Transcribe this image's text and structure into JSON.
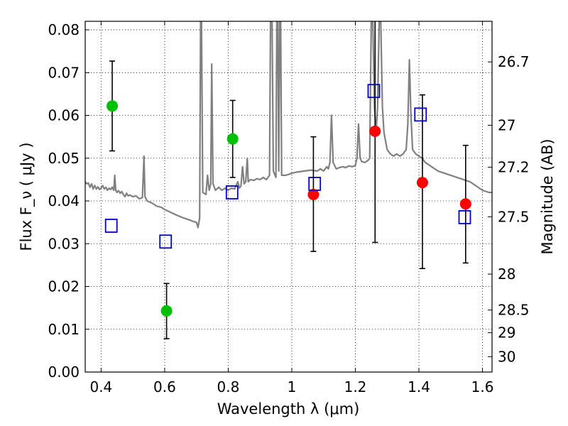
{
  "chart_data": {
    "type": "scatter",
    "xlabel": "Wavelength  λ (μm)",
    "ylabel": "Flux  F_ν ( μJy )",
    "ylabel_right": "Magnitude (AB)",
    "xlim": [
      0.35,
      1.63
    ],
    "ylim": [
      0.0,
      0.082
    ],
    "grid": true,
    "x_ticks": [
      {
        "value": 0.4,
        "label": "0.4"
      },
      {
        "value": 0.6,
        "label": "0.6"
      },
      {
        "value": 0.8,
        "label": "0.8"
      },
      {
        "value": 1.0,
        "label": "1"
      },
      {
        "value": 1.2,
        "label": "1.2"
      },
      {
        "value": 1.4,
        "label": "1.4"
      },
      {
        "value": 1.6,
        "label": "1.6"
      }
    ],
    "y_ticks": [
      {
        "value": 0.0,
        "label": "0.00"
      },
      {
        "value": 0.01,
        "label": "0.01"
      },
      {
        "value": 0.02,
        "label": "0.02"
      },
      {
        "value": 0.03,
        "label": "0.03"
      },
      {
        "value": 0.04,
        "label": "0.04"
      },
      {
        "value": 0.05,
        "label": "0.05"
      },
      {
        "value": 0.06,
        "label": "0.06"
      },
      {
        "value": 0.07,
        "label": "0.07"
      },
      {
        "value": 0.08,
        "label": "0.08"
      }
    ],
    "y_right_ticks": [
      {
        "flux": 0.0725,
        "label": "26.7"
      },
      {
        "flux": 0.0577,
        "label": "27"
      },
      {
        "flux": 0.0479,
        "label": "27.2"
      },
      {
        "flux": 0.0363,
        "label": "27.5"
      },
      {
        "flux": 0.0229,
        "label": "28"
      },
      {
        "flux": 0.0145,
        "label": "28.5"
      },
      {
        "flux": 0.0092,
        "label": "29"
      },
      {
        "flux": 0.0036,
        "label": "30"
      }
    ],
    "series": [
      {
        "kind": "line",
        "color": "#808080",
        "points": [
          [
            0.35,
            0.0445
          ],
          [
            0.355,
            0.044
          ],
          [
            0.36,
            0.0442
          ],
          [
            0.365,
            0.0432
          ],
          [
            0.37,
            0.044
          ],
          [
            0.375,
            0.0428
          ],
          [
            0.38,
            0.0436
          ],
          [
            0.385,
            0.0428
          ],
          [
            0.39,
            0.0433
          ],
          [
            0.395,
            0.0427
          ],
          [
            0.4,
            0.043
          ],
          [
            0.405,
            0.0436
          ],
          [
            0.41,
            0.0428
          ],
          [
            0.415,
            0.0432
          ],
          [
            0.42,
            0.0425
          ],
          [
            0.425,
            0.043
          ],
          [
            0.43,
            0.0427
          ],
          [
            0.435,
            0.0432
          ],
          [
            0.44,
            0.0425
          ],
          [
            0.443,
            0.046
          ],
          [
            0.446,
            0.0425
          ],
          [
            0.45,
            0.042
          ],
          [
            0.455,
            0.0424
          ],
          [
            0.46,
            0.0418
          ],
          [
            0.465,
            0.0422
          ],
          [
            0.47,
            0.0415
          ],
          [
            0.475,
            0.041
          ],
          [
            0.48,
            0.0418
          ],
          [
            0.485,
            0.0412
          ],
          [
            0.49,
            0.0414
          ],
          [
            0.5,
            0.041
          ],
          [
            0.51,
            0.0412
          ],
          [
            0.52,
            0.0405
          ],
          [
            0.53,
            0.0408
          ],
          [
            0.535,
            0.0505
          ],
          [
            0.538,
            0.041
          ],
          [
            0.545,
            0.04
          ],
          [
            0.56,
            0.0395
          ],
          [
            0.575,
            0.0388
          ],
          [
            0.59,
            0.0385
          ],
          [
            0.6,
            0.038
          ],
          [
            0.62,
            0.0373
          ],
          [
            0.64,
            0.0366
          ],
          [
            0.66,
            0.036
          ],
          [
            0.68,
            0.0355
          ],
          [
            0.69,
            0.0352
          ],
          [
            0.7,
            0.035
          ],
          [
            0.705,
            0.0338
          ],
          [
            0.71,
            0.036
          ],
          [
            0.713,
            0.082
          ],
          [
            0.716,
            0.082
          ],
          [
            0.72,
            0.042
          ],
          [
            0.73,
            0.0415
          ],
          [
            0.735,
            0.046
          ],
          [
            0.74,
            0.0425
          ],
          [
            0.745,
            0.044
          ],
          [
            0.748,
            0.072
          ],
          [
            0.752,
            0.044
          ],
          [
            0.76,
            0.0425
          ],
          [
            0.77,
            0.0432
          ],
          [
            0.78,
            0.0425
          ],
          [
            0.79,
            0.043
          ],
          [
            0.8,
            0.0425
          ],
          [
            0.81,
            0.043
          ],
          [
            0.82,
            0.0428
          ],
          [
            0.83,
            0.0445
          ],
          [
            0.835,
            0.043
          ],
          [
            0.84,
            0.0435
          ],
          [
            0.845,
            0.048
          ],
          [
            0.85,
            0.044
          ],
          [
            0.855,
            0.0445
          ],
          [
            0.86,
            0.05
          ],
          [
            0.863,
            0.0445
          ],
          [
            0.87,
            0.045
          ],
          [
            0.88,
            0.0448
          ],
          [
            0.89,
            0.0452
          ],
          [
            0.9,
            0.045
          ],
          [
            0.91,
            0.0455
          ],
          [
            0.92,
            0.045
          ],
          [
            0.93,
            0.046
          ],
          [
            0.933,
            0.082
          ],
          [
            0.938,
            0.082
          ],
          [
            0.942,
            0.047
          ],
          [
            0.95,
            0.0455
          ],
          [
            0.953,
            0.082
          ],
          [
            0.956,
            0.082
          ],
          [
            0.959,
            0.047
          ],
          [
            0.962,
            0.082
          ],
          [
            0.965,
            0.082
          ],
          [
            0.968,
            0.046
          ],
          [
            0.98,
            0.046
          ],
          [
            0.99,
            0.0462
          ],
          [
            1.0,
            0.0465
          ],
          [
            1.02,
            0.0468
          ],
          [
            1.04,
            0.047
          ],
          [
            1.06,
            0.0472
          ],
          [
            1.08,
            0.047
          ],
          [
            1.09,
            0.0475
          ],
          [
            1.1,
            0.047
          ],
          [
            1.11,
            0.048
          ],
          [
            1.115,
            0.0475
          ],
          [
            1.12,
            0.049
          ],
          [
            1.125,
            0.06
          ],
          [
            1.13,
            0.049
          ],
          [
            1.14,
            0.0475
          ],
          [
            1.15,
            0.0478
          ],
          [
            1.16,
            0.048
          ],
          [
            1.17,
            0.0478
          ],
          [
            1.18,
            0.0482
          ],
          [
            1.19,
            0.048
          ],
          [
            1.2,
            0.0483
          ],
          [
            1.205,
            0.05
          ],
          [
            1.21,
            0.058
          ],
          [
            1.215,
            0.05
          ],
          [
            1.22,
            0.0492
          ],
          [
            1.23,
            0.049
          ],
          [
            1.24,
            0.0495
          ],
          [
            1.245,
            0.05
          ],
          [
            1.25,
            0.082
          ],
          [
            1.255,
            0.082
          ],
          [
            1.26,
            0.062
          ],
          [
            1.265,
            0.056
          ],
          [
            1.27,
            0.062
          ],
          [
            1.275,
            0.082
          ],
          [
            1.28,
            0.082
          ],
          [
            1.285,
            0.062
          ],
          [
            1.29,
            0.056
          ],
          [
            1.3,
            0.052
          ],
          [
            1.31,
            0.051
          ],
          [
            1.32,
            0.0505
          ],
          [
            1.33,
            0.051
          ],
          [
            1.34,
            0.0505
          ],
          [
            1.35,
            0.051
          ],
          [
            1.36,
            0.052
          ],
          [
            1.365,
            0.058
          ],
          [
            1.37,
            0.073
          ],
          [
            1.375,
            0.06
          ],
          [
            1.38,
            0.052
          ],
          [
            1.39,
            0.051
          ],
          [
            1.4,
            0.0505
          ],
          [
            1.41,
            0.05
          ],
          [
            1.42,
            0.049
          ],
          [
            1.44,
            0.048
          ],
          [
            1.46,
            0.047
          ],
          [
            1.48,
            0.0465
          ],
          [
            1.5,
            0.046
          ],
          [
            1.52,
            0.0455
          ],
          [
            1.54,
            0.045
          ],
          [
            1.56,
            0.0445
          ],
          [
            1.58,
            0.0435
          ],
          [
            1.6,
            0.0425
          ],
          [
            1.62,
            0.042
          ],
          [
            1.63,
            0.042
          ]
        ]
      },
      {
        "kind": "marker",
        "marker": "circle",
        "color": "#00c000",
        "points": [
          {
            "x": 0.435,
            "y": 0.0622,
            "err": [
              0.0517,
              0.0727
            ]
          },
          {
            "x": 0.606,
            "y": 0.0143,
            "err": [
              0.0078,
              0.0207
            ]
          },
          {
            "x": 0.814,
            "y": 0.0545,
            "err": [
              0.0455,
              0.0635
            ]
          }
        ]
      },
      {
        "kind": "marker",
        "marker": "circle",
        "color": "#ff0000",
        "points": [
          {
            "x": 1.068,
            "y": 0.0415,
            "err": [
              0.0282,
              0.055
            ]
          },
          {
            "x": 1.262,
            "y": 0.0563,
            "err": [
              0.0303,
              0.082
            ]
          },
          {
            "x": 1.411,
            "y": 0.0443,
            "err": [
              0.0242,
              0.0648
            ]
          },
          {
            "x": 1.547,
            "y": 0.0393,
            "err": [
              0.0255,
              0.053
            ]
          }
        ]
      },
      {
        "kind": "marker",
        "marker": "square",
        "color": "#0000cc",
        "points": [
          {
            "x": 0.432,
            "y": 0.0342
          },
          {
            "x": 0.603,
            "y": 0.0305
          },
          {
            "x": 0.812,
            "y": 0.042
          },
          {
            "x": 1.072,
            "y": 0.044
          },
          {
            "x": 1.258,
            "y": 0.0657
          },
          {
            "x": 1.405,
            "y": 0.0602
          },
          {
            "x": 1.544,
            "y": 0.0362
          }
        ]
      }
    ]
  }
}
